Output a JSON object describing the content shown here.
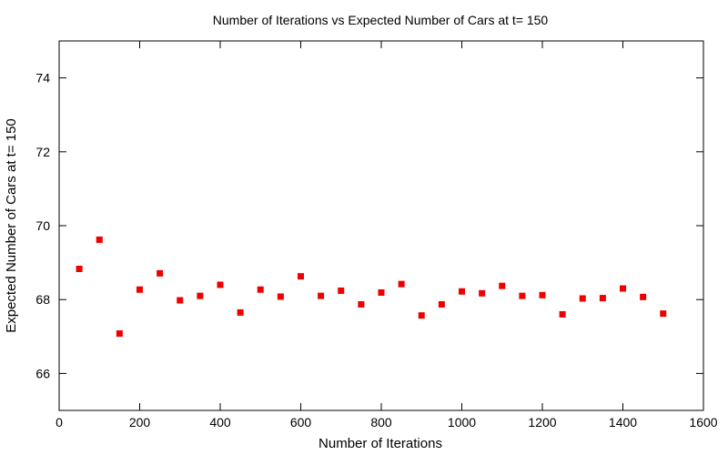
{
  "chart_data": {
    "type": "scatter",
    "title": "Number of Iterations vs Expected Number of Cars at t= 150",
    "xlabel": "Number of Iterations",
    "ylabel": "Expected Number of Cars at t= 150",
    "xlim": [
      0,
      1600
    ],
    "ylim": [
      65,
      75
    ],
    "x_ticks": [
      0,
      200,
      400,
      600,
      800,
      1000,
      1200,
      1400,
      1600
    ],
    "y_ticks": [
      66,
      68,
      70,
      72,
      74
    ],
    "grid": false,
    "legend": "none",
    "marker_color": "#ee0000",
    "series": [
      {
        "x": [
          50,
          100,
          150,
          200,
          250,
          300,
          350,
          400,
          450,
          500,
          550,
          600,
          650,
          700,
          750,
          800,
          850,
          900,
          950,
          1000,
          1050,
          1100,
          1150,
          1200,
          1250,
          1300,
          1350,
          1400,
          1450,
          1500
        ],
        "y": [
          68.83,
          69.62,
          67.08,
          68.27,
          68.71,
          67.98,
          68.1,
          68.4,
          67.65,
          68.27,
          68.08,
          68.63,
          68.1,
          68.24,
          67.87,
          68.19,
          68.42,
          67.57,
          67.87,
          68.22,
          68.17,
          68.37,
          68.1,
          68.12,
          67.6,
          68.03,
          68.04,
          68.3,
          68.07,
          67.62
        ]
      }
    ]
  }
}
